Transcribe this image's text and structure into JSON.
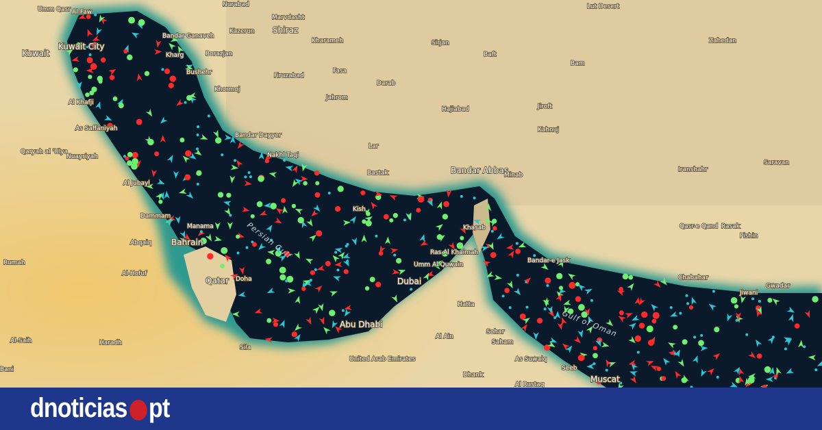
{
  "map": {
    "sea_labels": [
      "Persian Gulf",
      "Gulf of Oman"
    ],
    "places": {
      "umm_qasr": "Umm Qasr",
      "al_faw": "Al-Faw",
      "kuwait": "Kuwait",
      "kuwait_city": "Kuwait City",
      "bandar_ganaveh": "Bandar Ganaveh",
      "kharg": "Kharg",
      "borazjan": "Borazjan",
      "bushehr": "Bushehr",
      "khormoj": "Khormoj",
      "al_khafji": "Al Khafji",
      "as_saffaniyah": "As Saffaniyah",
      "qaryah": "Qaryah al 'Ulya",
      "nuayriyah": "Nuayriyah",
      "bandar_dayyer": "Bandar Dayyer",
      "nurabad": "Nurabad",
      "kazerun": "Kazerun",
      "shiraz": "Shiraz",
      "marvdasht": "Marvdasht",
      "kharameh": "Kharameh",
      "firuzabad": "Firuzabad",
      "fasa": "Fasa",
      "jahrom": "Jahrom",
      "darab": "Darab",
      "hajiabad": "Hajiabad",
      "lar": "Lar",
      "nakhl_taqi": "Nakhl Taqi",
      "bastak": "Bastak",
      "kish": "Kish",
      "bandar_abbas": "Bandar Abbas",
      "minab": "Minab",
      "sirjan": "Sirjan",
      "baft": "Baft",
      "jiroft": "Jiroft",
      "kahnuj": "Kahnuj",
      "bam": "Bam",
      "kerman_desert": "Lut Desert",
      "zahedan": "Zahedan",
      "iranshahr": "Iranshahr",
      "saravan": "Saravan",
      "chabahar": "Chabahar",
      "gwadar": "Gwadar",
      "jiwani": "Jiwani",
      "bandar_e_jask": "Bandar-e Jask",
      "qasr_e_qand": "Qasr-e Qand",
      "rasak": "Rasak",
      "pishin": "Pishin",
      "al_jubayl": "Al Jubayl",
      "dammam": "Dammam",
      "manama": "Manama",
      "bahrain": "Bahrain",
      "abqaiq": "Abqaiq",
      "al_hofuf": "Al-Hofuf",
      "rumah": "Rumah",
      "al_saih": "Al-Saih",
      "haradh": "Haradh",
      "bani": "Bani",
      "qatar": "Qatar",
      "doha": "Doha",
      "khasab": "Khasab",
      "ras_al_khaimah": "Ras Al Khaimah",
      "umm_al_quwain": "Umm Al Quwain",
      "dubai": "Dubai",
      "abu_dhabi": "Abu Dhabi",
      "uae": "United Arab Emirates",
      "al_ain": "Al Ain",
      "hatta": "Hatta",
      "sohar": "Sohar",
      "saham": "Saham",
      "as_suwaiq": "As Suwaiq",
      "seeb": "Seeb",
      "muscat": "Muscat",
      "al_rustaq": "Al Rustaq",
      "dhank": "Dhank",
      "sila": "Sila"
    },
    "colors": {
      "sea": "#0b1a2a",
      "shallow": "#2e8f86",
      "land": "#e3cf9f",
      "ship_tanker": "#ff2a2a",
      "ship_cargo": "#6ef070",
      "ship_passenger": "#27c9d8"
    }
  },
  "footer": {
    "logo_text_left": "dnoticias",
    "logo_text_right": "pt",
    "logo_dot_color": "#d0202a",
    "background": "#1e378a"
  }
}
